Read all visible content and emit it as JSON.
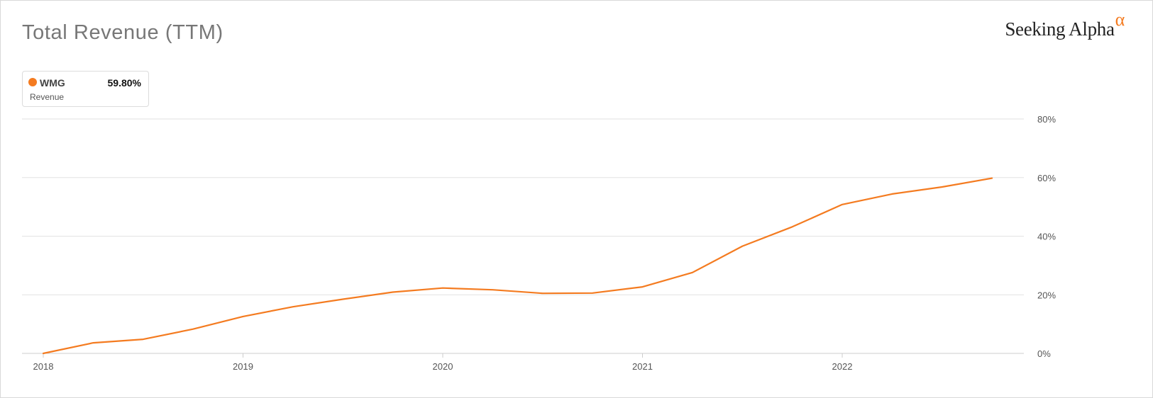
{
  "header": {
    "title": "Total Revenue (TTM)",
    "brand": "Seeking Alpha",
    "brand_symbol": "α",
    "brand_symbol_color": "#f47b20"
  },
  "legend": {
    "ticker": "WMG",
    "metric": "Revenue",
    "value": "59.80%",
    "color": "#f47b20"
  },
  "chart_data": {
    "type": "line",
    "title": "Total Revenue (TTM)",
    "xlabel": "",
    "ylabel": "",
    "x_ticks": [
      "2018",
      "2019",
      "2020",
      "2021",
      "2022"
    ],
    "y_ticks": [
      "0%",
      "20%",
      "40%",
      "60%",
      "80%"
    ],
    "ylim": [
      0,
      80
    ],
    "xlim": [
      2018.0,
      2022.92
    ],
    "y_axis_position": "right",
    "grid": true,
    "legend_position": "top-left",
    "series": [
      {
        "name": "WMG",
        "color": "#f47b20",
        "points": [
          {
            "x": 2018.0,
            "y": 0.0
          },
          {
            "x": 2018.25,
            "y": 3.6
          },
          {
            "x": 2018.5,
            "y": 4.8
          },
          {
            "x": 2018.75,
            "y": 8.3
          },
          {
            "x": 2019.0,
            "y": 12.6
          },
          {
            "x": 2019.25,
            "y": 15.9
          },
          {
            "x": 2019.5,
            "y": 18.5
          },
          {
            "x": 2019.75,
            "y": 20.9
          },
          {
            "x": 2020.0,
            "y": 22.3
          },
          {
            "x": 2020.25,
            "y": 21.7
          },
          {
            "x": 2020.5,
            "y": 20.5
          },
          {
            "x": 2020.75,
            "y": 20.6
          },
          {
            "x": 2021.0,
            "y": 22.7
          },
          {
            "x": 2021.25,
            "y": 27.6
          },
          {
            "x": 2021.5,
            "y": 36.6
          },
          {
            "x": 2021.75,
            "y": 43.2
          },
          {
            "x": 2022.0,
            "y": 50.8
          },
          {
            "x": 2022.25,
            "y": 54.4
          },
          {
            "x": 2022.5,
            "y": 56.8
          },
          {
            "x": 2022.75,
            "y": 59.8
          }
        ]
      }
    ]
  }
}
